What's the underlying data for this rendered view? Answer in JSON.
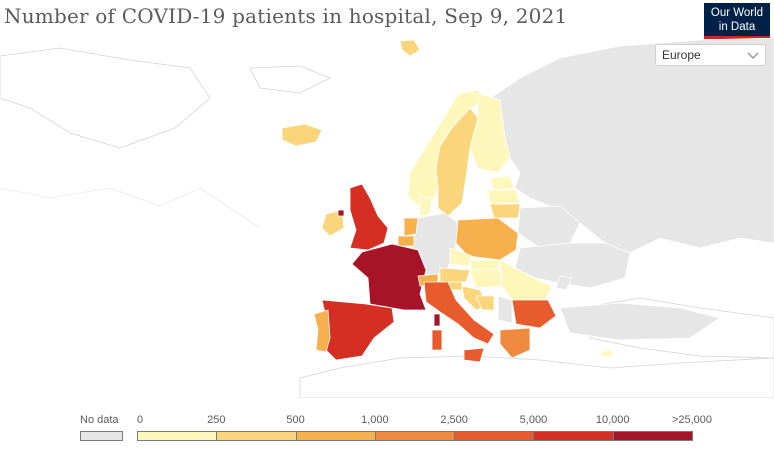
{
  "header": {
    "title": "Number of COVID-19 patients in hospital, Sep 9, 2021",
    "logo_line1": "Our World",
    "logo_line2": "in Data"
  },
  "region_select": {
    "value": "Europe"
  },
  "legend": {
    "no_data_label": "No data",
    "bins": [
      {
        "label": "0",
        "color": "#fef7bb"
      },
      {
        "label": "250",
        "color": "#fbd57c"
      },
      {
        "label": "500",
        "color": "#f6b04d"
      },
      {
        "label": "1,000",
        "color": "#f08a40"
      },
      {
        "label": "2,500",
        "color": "#e85b2d"
      },
      {
        "label": "5,000",
        "color": "#d52e22"
      },
      {
        "label": "10,000",
        "color": "#a81427"
      }
    ],
    "last_label": ">25,000"
  },
  "colors": {
    "no_data": "#e6e6e6",
    "background_land": "#ffffff",
    "border": "#cccccc"
  }
}
